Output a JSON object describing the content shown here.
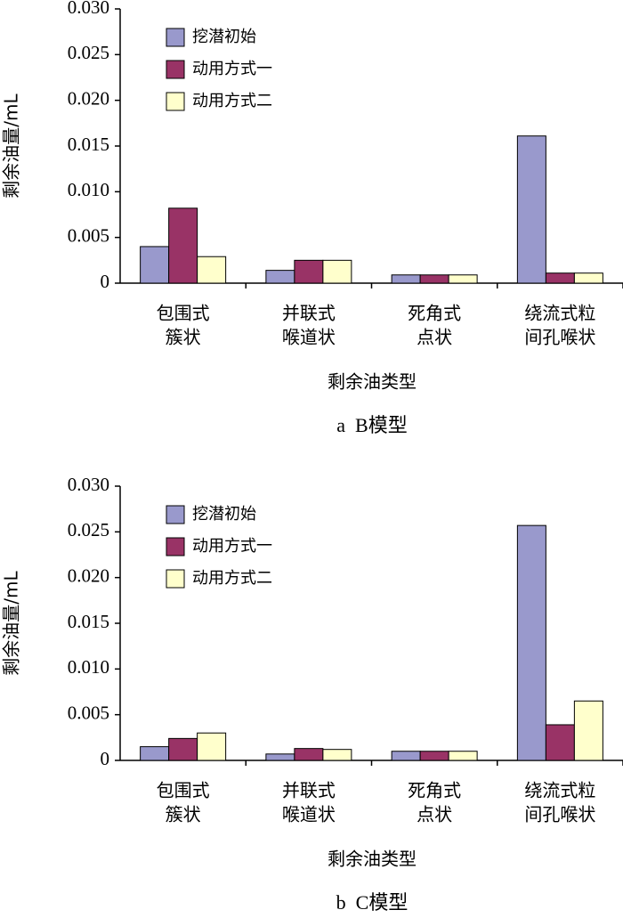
{
  "chart_data": [
    {
      "type": "bar",
      "caption": "a  B模型",
      "xlabel": "剩余油类型",
      "ylabel": "剩余油量/mL",
      "categories": [
        [
          "包围式",
          "簇状"
        ],
        [
          "并联式",
          "喉道状"
        ],
        [
          "死角式",
          "点状"
        ],
        [
          "绕流式粒",
          "间孔喉状"
        ]
      ],
      "series": [
        {
          "name": "挖潜初始",
          "color": "#9999cc",
          "values": [
            0.004,
            0.0014,
            0.0009,
            0.0161
          ]
        },
        {
          "name": "动用方式一",
          "color": "#993366",
          "values": [
            0.0082,
            0.0025,
            0.0009,
            0.0011
          ]
        },
        {
          "name": "动用方式二",
          "color": "#ffffcc",
          "values": [
            0.0029,
            0.0025,
            0.0009,
            0.0011
          ]
        }
      ],
      "ylim": [
        0,
        0.03
      ],
      "yticks": [
        0,
        0.005,
        {
          "value": 0.01,
          "label": "0.010"
        },
        0.015,
        {
          "value": 0.02,
          "label": "0.020"
        },
        0.025,
        {
          "value": 0.03,
          "label": "0.030"
        }
      ],
      "legend": "upper left"
    },
    {
      "type": "bar",
      "caption": "b  C模型",
      "xlabel": "剩余油类型",
      "ylabel": "剩余油量/mL",
      "categories": [
        [
          "包围式",
          "簇状"
        ],
        [
          "并联式",
          "喉道状"
        ],
        [
          "死角式",
          "点状"
        ],
        [
          "绕流式粒",
          "间孔喉状"
        ]
      ],
      "series": [
        {
          "name": "挖潜初始",
          "color": "#9999cc",
          "values": [
            0.0015,
            0.0007,
            0.001,
            0.0257
          ]
        },
        {
          "name": "动用方式一",
          "color": "#993366",
          "values": [
            0.0024,
            0.0013,
            0.001,
            0.0039
          ]
        },
        {
          "name": "动用方式二",
          "color": "#ffffcc",
          "values": [
            0.003,
            0.0012,
            0.001,
            0.0065
          ]
        }
      ],
      "ylim": [
        0,
        0.03
      ],
      "yticks": [
        0,
        0.005,
        {
          "value": 0.01,
          "label": "0.010"
        },
        0.015,
        {
          "value": 0.02,
          "label": "0.020"
        },
        0.025,
        {
          "value": 0.03,
          "label": "0.030"
        }
      ],
      "legend": "upper left"
    }
  ]
}
